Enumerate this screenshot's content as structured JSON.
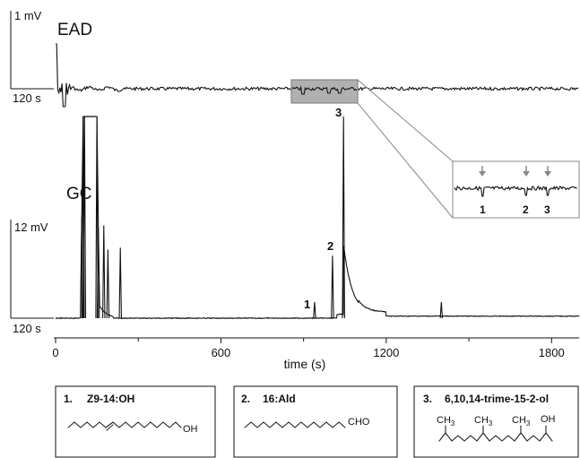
{
  "chart_data": {
    "type": "line",
    "xlabel": "time (s)",
    "x_ticks": [
      0,
      600,
      1200,
      1800
    ],
    "xlim": [
      0,
      1900
    ],
    "ead": {
      "label": "EAD",
      "scale_bar": {
        "voltage": "1 mV",
        "time": "120 s"
      }
    },
    "gc": {
      "label": "GC",
      "scale_bar": {
        "voltage": "12 mV",
        "time": "120 s"
      },
      "peaks": [
        {
          "x": 95,
          "height": 0.5
        },
        {
          "x": 100,
          "height": 1.0
        },
        {
          "x": 105,
          "height": 1.0
        },
        {
          "x": 150,
          "height": 1.0
        },
        {
          "x": 155,
          "height": 0.45
        },
        {
          "x": 175,
          "height": 0.46
        },
        {
          "x": 190,
          "height": 0.34
        },
        {
          "x": 235,
          "height": 0.35
        },
        {
          "x": 940,
          "height": 0.08,
          "label": "1"
        },
        {
          "x": 1005,
          "height": 0.31,
          "label": "2"
        },
        {
          "x": 1045,
          "height": 1.0,
          "label": "3"
        },
        {
          "x": 1400,
          "height": 0.08
        }
      ]
    },
    "inset_labels": [
      "1",
      "2",
      "3"
    ]
  },
  "compounds": [
    {
      "number": "1.",
      "name": "Z9-14:OH",
      "end_group": "OH"
    },
    {
      "number": "2.",
      "name": "16:Ald",
      "end_group": "CHO"
    },
    {
      "number": "3.",
      "name": "6,10,14-trime-15-2-ol",
      "methyl_labels": [
        "CH3",
        "CH3",
        "CH3"
      ],
      "end_group": "OH"
    }
  ]
}
